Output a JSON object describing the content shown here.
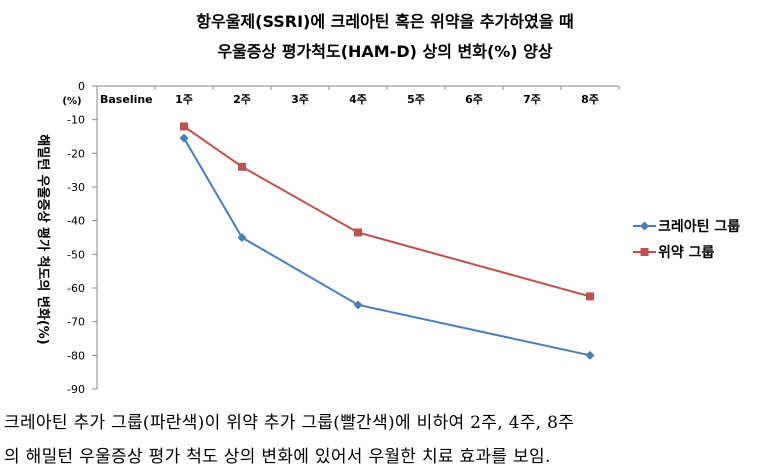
{
  "chart_data": {
    "type": "line",
    "title_lines": [
      "항우울제(SSRI)에 크레아틴 혹은 위약을 추가하였을 때",
      "우울증상 평가척도(HAM-D) 상의 변화(%) 양상"
    ],
    "ylabel": "해밀턴 우울증상 평가 척도의 변화(%)",
    "y_unit": "(%)",
    "categories": [
      "Baseline",
      "1주",
      "2주",
      "3주",
      "4주",
      "5주",
      "6주",
      "7주",
      "8주"
    ],
    "ylim": [
      -90,
      0
    ],
    "y_ticks": [
      0,
      -10,
      -20,
      -30,
      -40,
      -50,
      -60,
      -70,
      -80,
      -90
    ],
    "legend_position": "right",
    "grid": false,
    "series": [
      {
        "name": "크레아틴 그룹",
        "color": "#4a7ebb",
        "marker": "diamond",
        "points": [
          [
            "1주",
            -15.5
          ],
          [
            "2주",
            -45
          ],
          [
            "4주",
            -65
          ],
          [
            "8주",
            -80
          ]
        ]
      },
      {
        "name": "위약 그룹",
        "color": "#c0504d",
        "marker": "square",
        "points": [
          [
            "1주",
            -12
          ],
          [
            "2주",
            -24
          ],
          [
            "4주",
            -43.5
          ],
          [
            "8주",
            -62.5
          ]
        ]
      }
    ]
  },
  "caption": {
    "line1": "크레아틴 추가 그룹(파란색)이 위약 추가 그룹(빨간색)에 비하여 2주, 4주, 8주",
    "line2": "의 해밀턴 우울증상 평가 척도 상의 변화에 있어서 우월한 치료 효과를 보임."
  }
}
